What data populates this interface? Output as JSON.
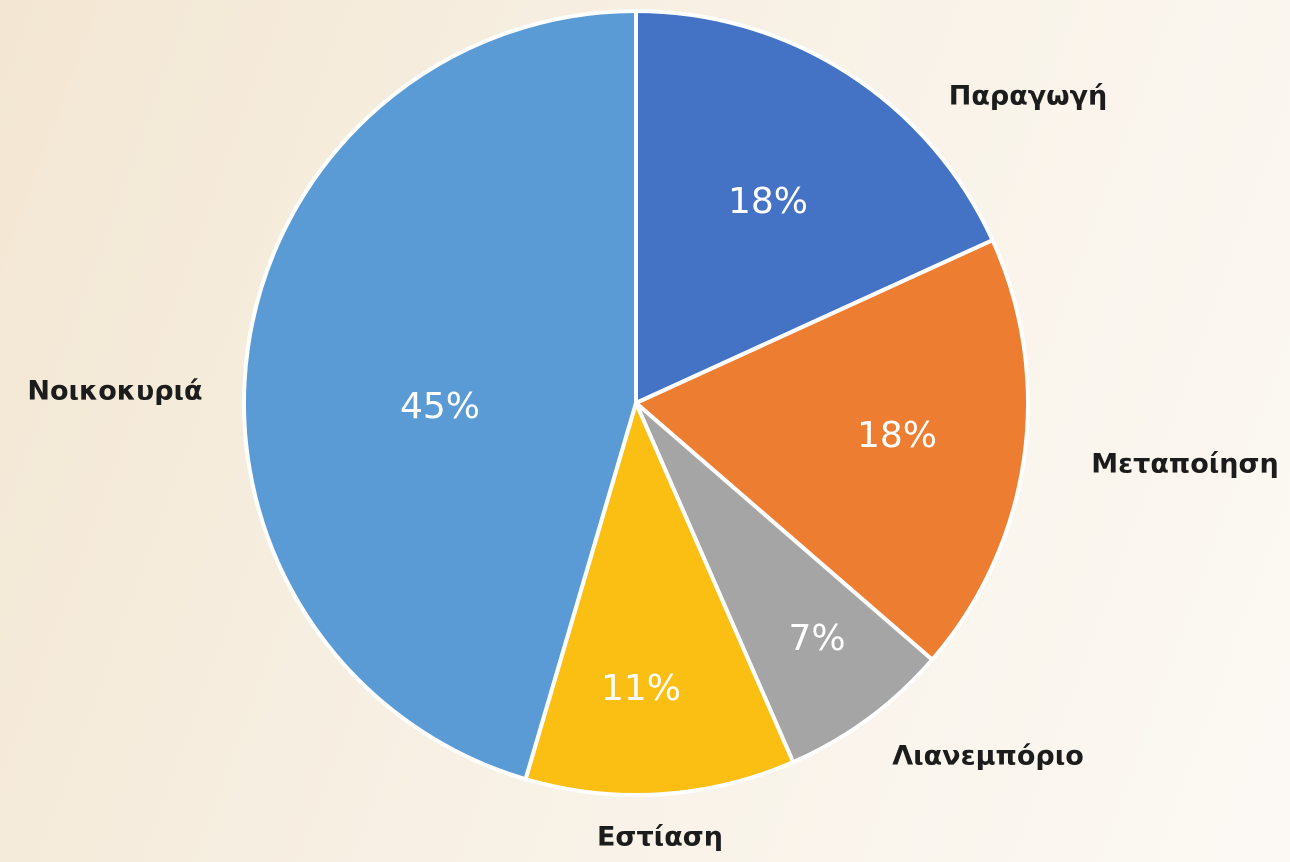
{
  "chart_data": {
    "type": "pie",
    "categories": [
      "Παραγωγή",
      "Μεταποίηση",
      "Λιανεμπόριο",
      "Εστίαση",
      "Νοικοκυριά"
    ],
    "values": [
      18,
      18,
      7,
      11,
      45
    ],
    "value_labels": [
      "18%",
      "18%",
      "7%",
      "11%",
      "45%"
    ],
    "colors": [
      "#4472c4",
      "#ed7d31",
      "#a5a5a5",
      "#fbbf14",
      "#5b9bd5"
    ]
  }
}
